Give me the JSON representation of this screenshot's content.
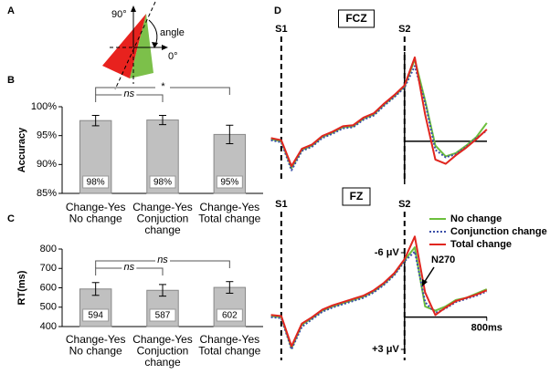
{
  "panel_a": {
    "label": "A",
    "texts": [
      "90°",
      "angle",
      "0°"
    ]
  },
  "chart_data": [
    {
      "type": "bar",
      "panel": "B",
      "ylabel": "Accuracy",
      "categories": [
        [
          "Change-Yes",
          "No change"
        ],
        [
          "Change-Yes",
          "Conjuction",
          "change"
        ],
        [
          "Change-Yes",
          "Total change"
        ]
      ],
      "values": [
        97.6,
        97.7,
        95.2
      ],
      "value_labels": [
        "98%",
        "98%",
        "95%"
      ],
      "errors": [
        0.9,
        0.8,
        1.6
      ],
      "color": "#c0c0c0",
      "ylim": [
        85,
        100
      ],
      "yticks": [
        {
          "value": 85,
          "label": "85%"
        },
        {
          "value": 90,
          "label": "90%"
        },
        {
          "value": 95,
          "label": "95%"
        },
        {
          "value": 100,
          "label": "100%"
        }
      ],
      "annotations": [
        "ns",
        "*"
      ]
    },
    {
      "type": "bar",
      "panel": "C",
      "ylabel": "RT(ms)",
      "categories": [
        [
          "Change-Yes",
          "No change"
        ],
        [
          "Change-Yes",
          "Conjuction",
          "change"
        ],
        [
          "Change-Yes",
          "Total change"
        ]
      ],
      "values": [
        594,
        587,
        602
      ],
      "errors": [
        33,
        30,
        30
      ],
      "color": "#c0c0c0",
      "ylim": [
        400,
        800
      ],
      "yticks": [
        400,
        500,
        600,
        700,
        800
      ],
      "annotations": [
        "ns",
        "ns"
      ]
    },
    {
      "type": "line",
      "panel": "D",
      "title": "FCZ",
      "ylim": [
        4,
        -10
      ],
      "xlim": [
        -1350,
        820
      ],
      "markers": [
        {
          "label": "S1",
          "x": -1200
        },
        {
          "label": "S2",
          "x": 0
        }
      ],
      "x": [
        -1300,
        -1200,
        -1100,
        -1000,
        -900,
        -800,
        -700,
        -600,
        -500,
        -400,
        -300,
        -200,
        -100,
        0,
        100,
        200,
        300,
        400,
        500,
        600,
        700,
        800
      ],
      "series": [
        {
          "color": "#6cbf3c",
          "style": "solid",
          "values": [
            -0.2,
            0,
            2.5,
            0.8,
            0.4,
            -0.4,
            -0.8,
            -1.3,
            -1.4,
            -2.1,
            -2.5,
            -3.4,
            -4.2,
            -5.1,
            -7.6,
            -3.8,
            0.4,
            1.4,
            1.1,
            0.4,
            -0.4,
            -1.7
          ]
        },
        {
          "color": "#3a4fa8",
          "style": "dotted",
          "values": [
            -0.1,
            0.1,
            2.7,
            0.9,
            0.5,
            -0.3,
            -0.7,
            -1.2,
            -1.3,
            -2.0,
            -2.4,
            -3.3,
            -4.1,
            -5.0,
            -7.0,
            -3.6,
            0.8,
            1.5,
            1.2,
            0.5,
            -0.3,
            -1.0
          ]
        },
        {
          "color": "#e0261f",
          "style": "solid",
          "values": [
            -0.3,
            -0.1,
            2.3,
            0.7,
            0.3,
            -0.5,
            -0.9,
            -1.4,
            -1.5,
            -2.2,
            -2.6,
            -3.5,
            -4.3,
            -5.2,
            -7.8,
            -2.5,
            1.7,
            2.1,
            1.3,
            0.6,
            -0.2,
            -1.1
          ]
        }
      ]
    },
    {
      "type": "line",
      "panel": "D",
      "title": "FZ",
      "ylim": [
        3,
        -6
      ],
      "xlim": [
        -1350,
        820
      ],
      "yticks": [
        {
          "value": -6,
          "label": "-6 μV"
        },
        {
          "value": 3,
          "label": "+3 μV"
        }
      ],
      "xticks": [
        {
          "value": 800,
          "label": "800ms"
        }
      ],
      "markers": [
        {
          "label": "S1",
          "x": -1200
        },
        {
          "label": "S2",
          "x": 0
        }
      ],
      "annotations": [
        "N270"
      ],
      "x": [
        -1300,
        -1200,
        -1100,
        -1000,
        -900,
        -800,
        -700,
        -600,
        -500,
        -400,
        -300,
        -200,
        -100,
        0,
        100,
        200,
        300,
        400,
        500,
        600,
        700,
        800
      ],
      "series": [
        {
          "name": "No change",
          "color": "#6cbf3c",
          "style": "solid",
          "values": [
            -0.1,
            0,
            2.9,
            0.7,
            0.1,
            -0.6,
            -1.0,
            -1.3,
            -1.6,
            -1.9,
            -2.4,
            -3.1,
            -4.0,
            -5.3,
            -6.5,
            -1.0,
            -0.6,
            -1.0,
            -1.6,
            -1.8,
            -2.2,
            -2.6
          ]
        },
        {
          "name": "Conjunction change",
          "color": "#3a4fa8",
          "style": "dotted",
          "values": [
            0,
            0.1,
            3.0,
            0.9,
            0.2,
            -0.5,
            -0.9,
            -1.2,
            -1.5,
            -1.8,
            -2.3,
            -3.0,
            -3.9,
            -5.2,
            -6.1,
            -1.4,
            -0.4,
            -0.8,
            -1.4,
            -1.7,
            -2.0,
            -2.4
          ]
        },
        {
          "name": "Total change",
          "color": "#e0261f",
          "style": "solid",
          "values": [
            -0.2,
            -0.1,
            2.7,
            0.6,
            0,
            -0.7,
            -1.1,
            -1.4,
            -1.7,
            -2.0,
            -2.5,
            -3.2,
            -4.1,
            -5.4,
            -7.5,
            -2.3,
            -0.2,
            -0.9,
            -1.5,
            -1.8,
            -2.1,
            -2.5
          ]
        }
      ]
    }
  ]
}
